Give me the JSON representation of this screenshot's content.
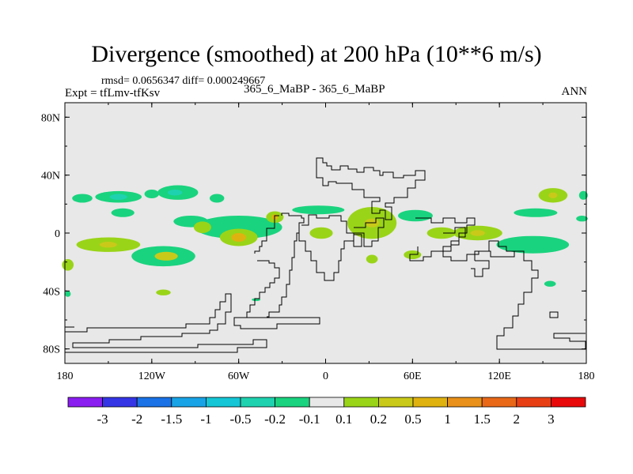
{
  "chart_data": {
    "type": "heatmap",
    "title": "Divergence (smoothed) at 200 hPa (10**6 m/s)",
    "stats_text": "rmsd= 0.0656347 diff= 0.000249667",
    "expt_text": "Expt = tfLmv-tfKsv",
    "case_text": "365_6_MaBP - 365_6_MaBP",
    "season": "ANN",
    "x_axis": {
      "range": [
        -180,
        180
      ],
      "ticks": [
        -180,
        -120,
        -60,
        0,
        60,
        120,
        180
      ],
      "tick_labels": [
        "180",
        "120W",
        "60W",
        "0",
        "60E",
        "120E",
        "180"
      ]
    },
    "y_axis": {
      "range": [
        -90,
        90
      ],
      "ticks": [
        -80,
        -40,
        0,
        40,
        80
      ],
      "tick_labels": [
        "80S",
        "40S",
        "0",
        "40N",
        "80N"
      ]
    },
    "colorbar": {
      "labels": [
        "-3",
        "-2",
        "-1.5",
        "-1",
        "-0.5",
        "-0.2",
        "-0.1",
        "0.1",
        "0.2",
        "0.5",
        "1",
        "1.5",
        "2",
        "3"
      ],
      "colors": [
        "#8a1ef0",
        "#3535e6",
        "#1a72e6",
        "#18a3e6",
        "#14c6d6",
        "#1ed2b0",
        "#1ad37e",
        "#e8e8e8",
        "#9ad418",
        "#c9c91a",
        "#e0b210",
        "#e8901a",
        "#e86818",
        "#e83e14",
        "#e80a0a"
      ]
    },
    "blobs": [
      {
        "lon": -168,
        "lat": 24,
        "rlon": 7,
        "rlat": 3,
        "level": "-0.1"
      },
      {
        "lon": -143,
        "lat": 25,
        "rlon": 16,
        "rlat": 4,
        "level": "-0.1"
      },
      {
        "lon": -143,
        "lat": 25,
        "rlon": 6,
        "rlat": 2,
        "level": "-0.2"
      },
      {
        "lon": -102,
        "lat": 28,
        "rlon": 14,
        "rlat": 5,
        "level": "-0.1"
      },
      {
        "lon": -104,
        "lat": 28,
        "rlon": 5,
        "rlat": 2,
        "level": "-0.2"
      },
      {
        "lon": -75,
        "lat": 24,
        "rlon": 5,
        "rlat": 3,
        "level": "-0.1"
      },
      {
        "lon": -140,
        "lat": 14,
        "rlon": 8,
        "rlat": 3,
        "level": "-0.1"
      },
      {
        "lon": -150,
        "lat": -8,
        "rlon": 22,
        "rlat": 5,
        "level": "0.1"
      },
      {
        "lon": -150,
        "lat": -8,
        "rlon": 6,
        "rlat": 2,
        "level": "0.2"
      },
      {
        "lon": -112,
        "lat": -16,
        "rlon": 22,
        "rlat": 7,
        "level": "-0.1"
      },
      {
        "lon": -110,
        "lat": -16,
        "rlon": 8,
        "rlat": 3,
        "level": "0.2"
      },
      {
        "lon": -93,
        "lat": 8,
        "rlon": 12,
        "rlat": 4,
        "level": "-0.1"
      },
      {
        "lon": -60,
        "lat": 4,
        "rlon": 30,
        "rlat": 8,
        "level": "-0.1"
      },
      {
        "lon": -60,
        "lat": -3,
        "rlon": 13,
        "rlat": 6,
        "level": "0.1"
      },
      {
        "lon": -60,
        "lat": -3,
        "rlon": 5,
        "rlat": 3,
        "level": "0.5"
      },
      {
        "lon": -85,
        "lat": 4,
        "rlon": 6,
        "rlat": 4,
        "level": "0.1"
      },
      {
        "lon": -35,
        "lat": 11,
        "rlon": 6,
        "rlat": 4,
        "level": "0.1"
      },
      {
        "lon": -35,
        "lat": 11,
        "rlon": 2,
        "rlat": 2,
        "level": "0.5"
      },
      {
        "lon": -5,
        "lat": 16,
        "rlon": 18,
        "rlat": 3,
        "level": "-0.1"
      },
      {
        "lon": -3,
        "lat": 0,
        "rlon": 8,
        "rlat": 4,
        "level": "0.1"
      },
      {
        "lon": 32,
        "lat": 7,
        "rlon": 17,
        "rlat": 11,
        "level": "0.1"
      },
      {
        "lon": 32,
        "lat": 7,
        "rlon": 5,
        "rlat": 3,
        "level": "0.2"
      },
      {
        "lon": 62,
        "lat": 12,
        "rlon": 12,
        "rlat": 4,
        "level": "-0.1"
      },
      {
        "lon": 80,
        "lat": 0,
        "rlon": 10,
        "rlat": 4,
        "level": "0.1"
      },
      {
        "lon": 105,
        "lat": 0,
        "rlon": 17,
        "rlat": 5,
        "level": "0.1"
      },
      {
        "lon": 105,
        "lat": 0,
        "rlon": 5,
        "rlat": 2,
        "level": "0.2"
      },
      {
        "lon": 143,
        "lat": -8,
        "rlon": 25,
        "rlat": 6,
        "level": "-0.1"
      },
      {
        "lon": 157,
        "lat": 26,
        "rlon": 10,
        "rlat": 5,
        "level": "0.1"
      },
      {
        "lon": 157,
        "lat": 26,
        "rlon": 3,
        "rlat": 2,
        "level": "0.2"
      },
      {
        "lon": 145,
        "lat": 14,
        "rlon": 15,
        "rlat": 3,
        "level": "-0.1"
      },
      {
        "lon": 60,
        "lat": -15,
        "rlon": 6,
        "rlat": 3,
        "level": "0.1"
      },
      {
        "lon": 32,
        "lat": -18,
        "rlon": 4,
        "rlat": 3,
        "level": "0.1"
      },
      {
        "lon": -112,
        "lat": -41,
        "rlon": 5,
        "rlat": 2,
        "level": "0.1"
      },
      {
        "lon": -178,
        "lat": -22,
        "rlon": 4,
        "rlat": 4,
        "level": "0.1"
      },
      {
        "lon": -178,
        "lat": -42,
        "rlon": 2,
        "rlat": 2,
        "level": "-0.1"
      },
      {
        "lon": -48,
        "lat": -46,
        "rlon": 3,
        "rlat": 1,
        "level": "-0.1"
      },
      {
        "lon": 155,
        "lat": -35,
        "rlon": 4,
        "rlat": 2,
        "level": "-0.1"
      },
      {
        "lon": 178,
        "lat": 26,
        "rlon": 3,
        "rlat": 3,
        "level": "-0.1"
      },
      {
        "lon": 177,
        "lat": 10,
        "rlon": 4,
        "rlat": 2,
        "level": "-0.1"
      },
      {
        "lon": -120,
        "lat": 27,
        "rlon": 5,
        "rlat": 3,
        "level": "-0.1"
      }
    ]
  }
}
